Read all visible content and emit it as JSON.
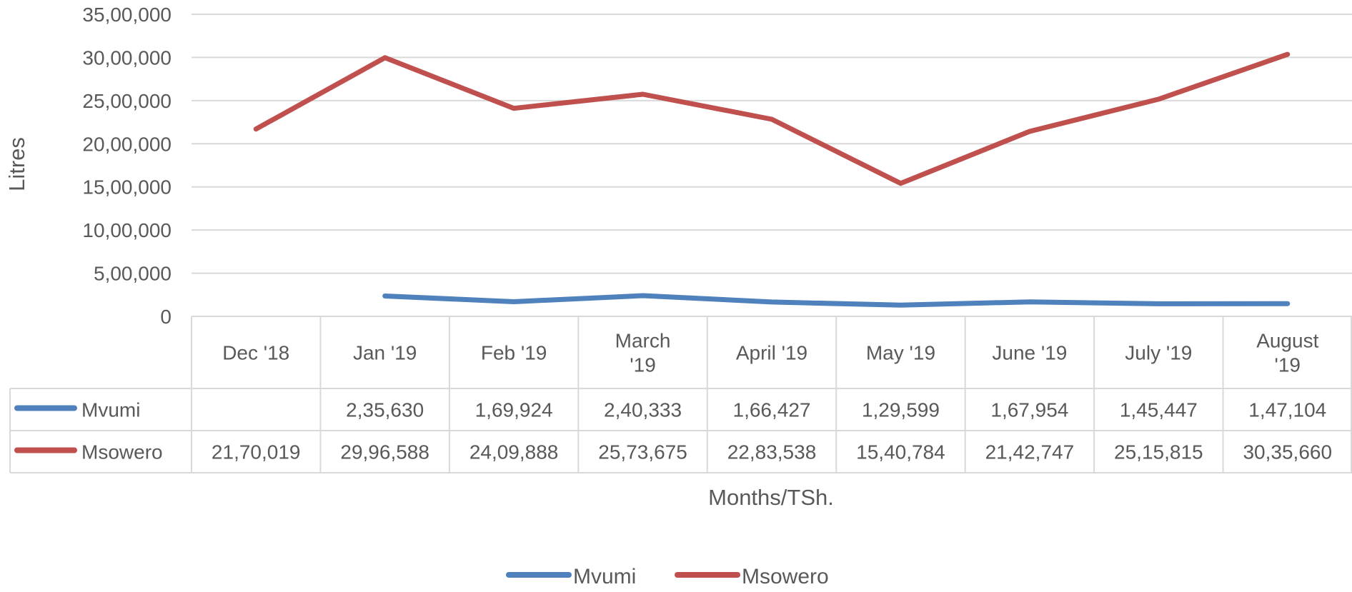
{
  "chart_data": {
    "type": "line",
    "ylabel": "Litres",
    "xlabel": "Months/TSh.",
    "ylim": [
      0,
      3500000
    ],
    "yticks": [
      "0",
      "5,00,000",
      "10,00,000",
      "15,00,000",
      "20,00,000",
      "25,00,000",
      "30,00,000",
      "35,00,000"
    ],
    "ytick_values": [
      0,
      500000,
      1000000,
      1500000,
      2000000,
      2500000,
      3000000,
      3500000
    ],
    "grid": true,
    "legend": "bottom",
    "data_table": true,
    "categories": [
      [
        "Dec '18"
      ],
      [
        "Jan '19"
      ],
      [
        "Feb '19"
      ],
      [
        "March",
        "'19"
      ],
      [
        "April '19"
      ],
      [
        "May '19"
      ],
      [
        "June '19"
      ],
      [
        "July '19"
      ],
      [
        "August",
        "'19"
      ]
    ],
    "series": [
      {
        "name": "Mvumi",
        "color": "#4f81bd",
        "values": [
          null,
          235630,
          169924,
          240333,
          166427,
          129599,
          167954,
          145447,
          147104
        ],
        "labels": [
          "",
          "2,35,630",
          "1,69,924",
          "2,40,333",
          "1,66,427",
          "1,29,599",
          "1,67,954",
          "1,45,447",
          "1,47,104"
        ]
      },
      {
        "name": "Msowero",
        "color": "#c0504d",
        "values": [
          2170019,
          2996588,
          2409888,
          2573675,
          2283538,
          1540784,
          2142747,
          2515815,
          3035660
        ],
        "labels": [
          "21,70,019",
          "29,96,588",
          "24,09,888",
          "25,73,675",
          "22,83,538",
          "15,40,784",
          "21,42,747",
          "25,15,815",
          "30,35,660"
        ]
      }
    ]
  }
}
